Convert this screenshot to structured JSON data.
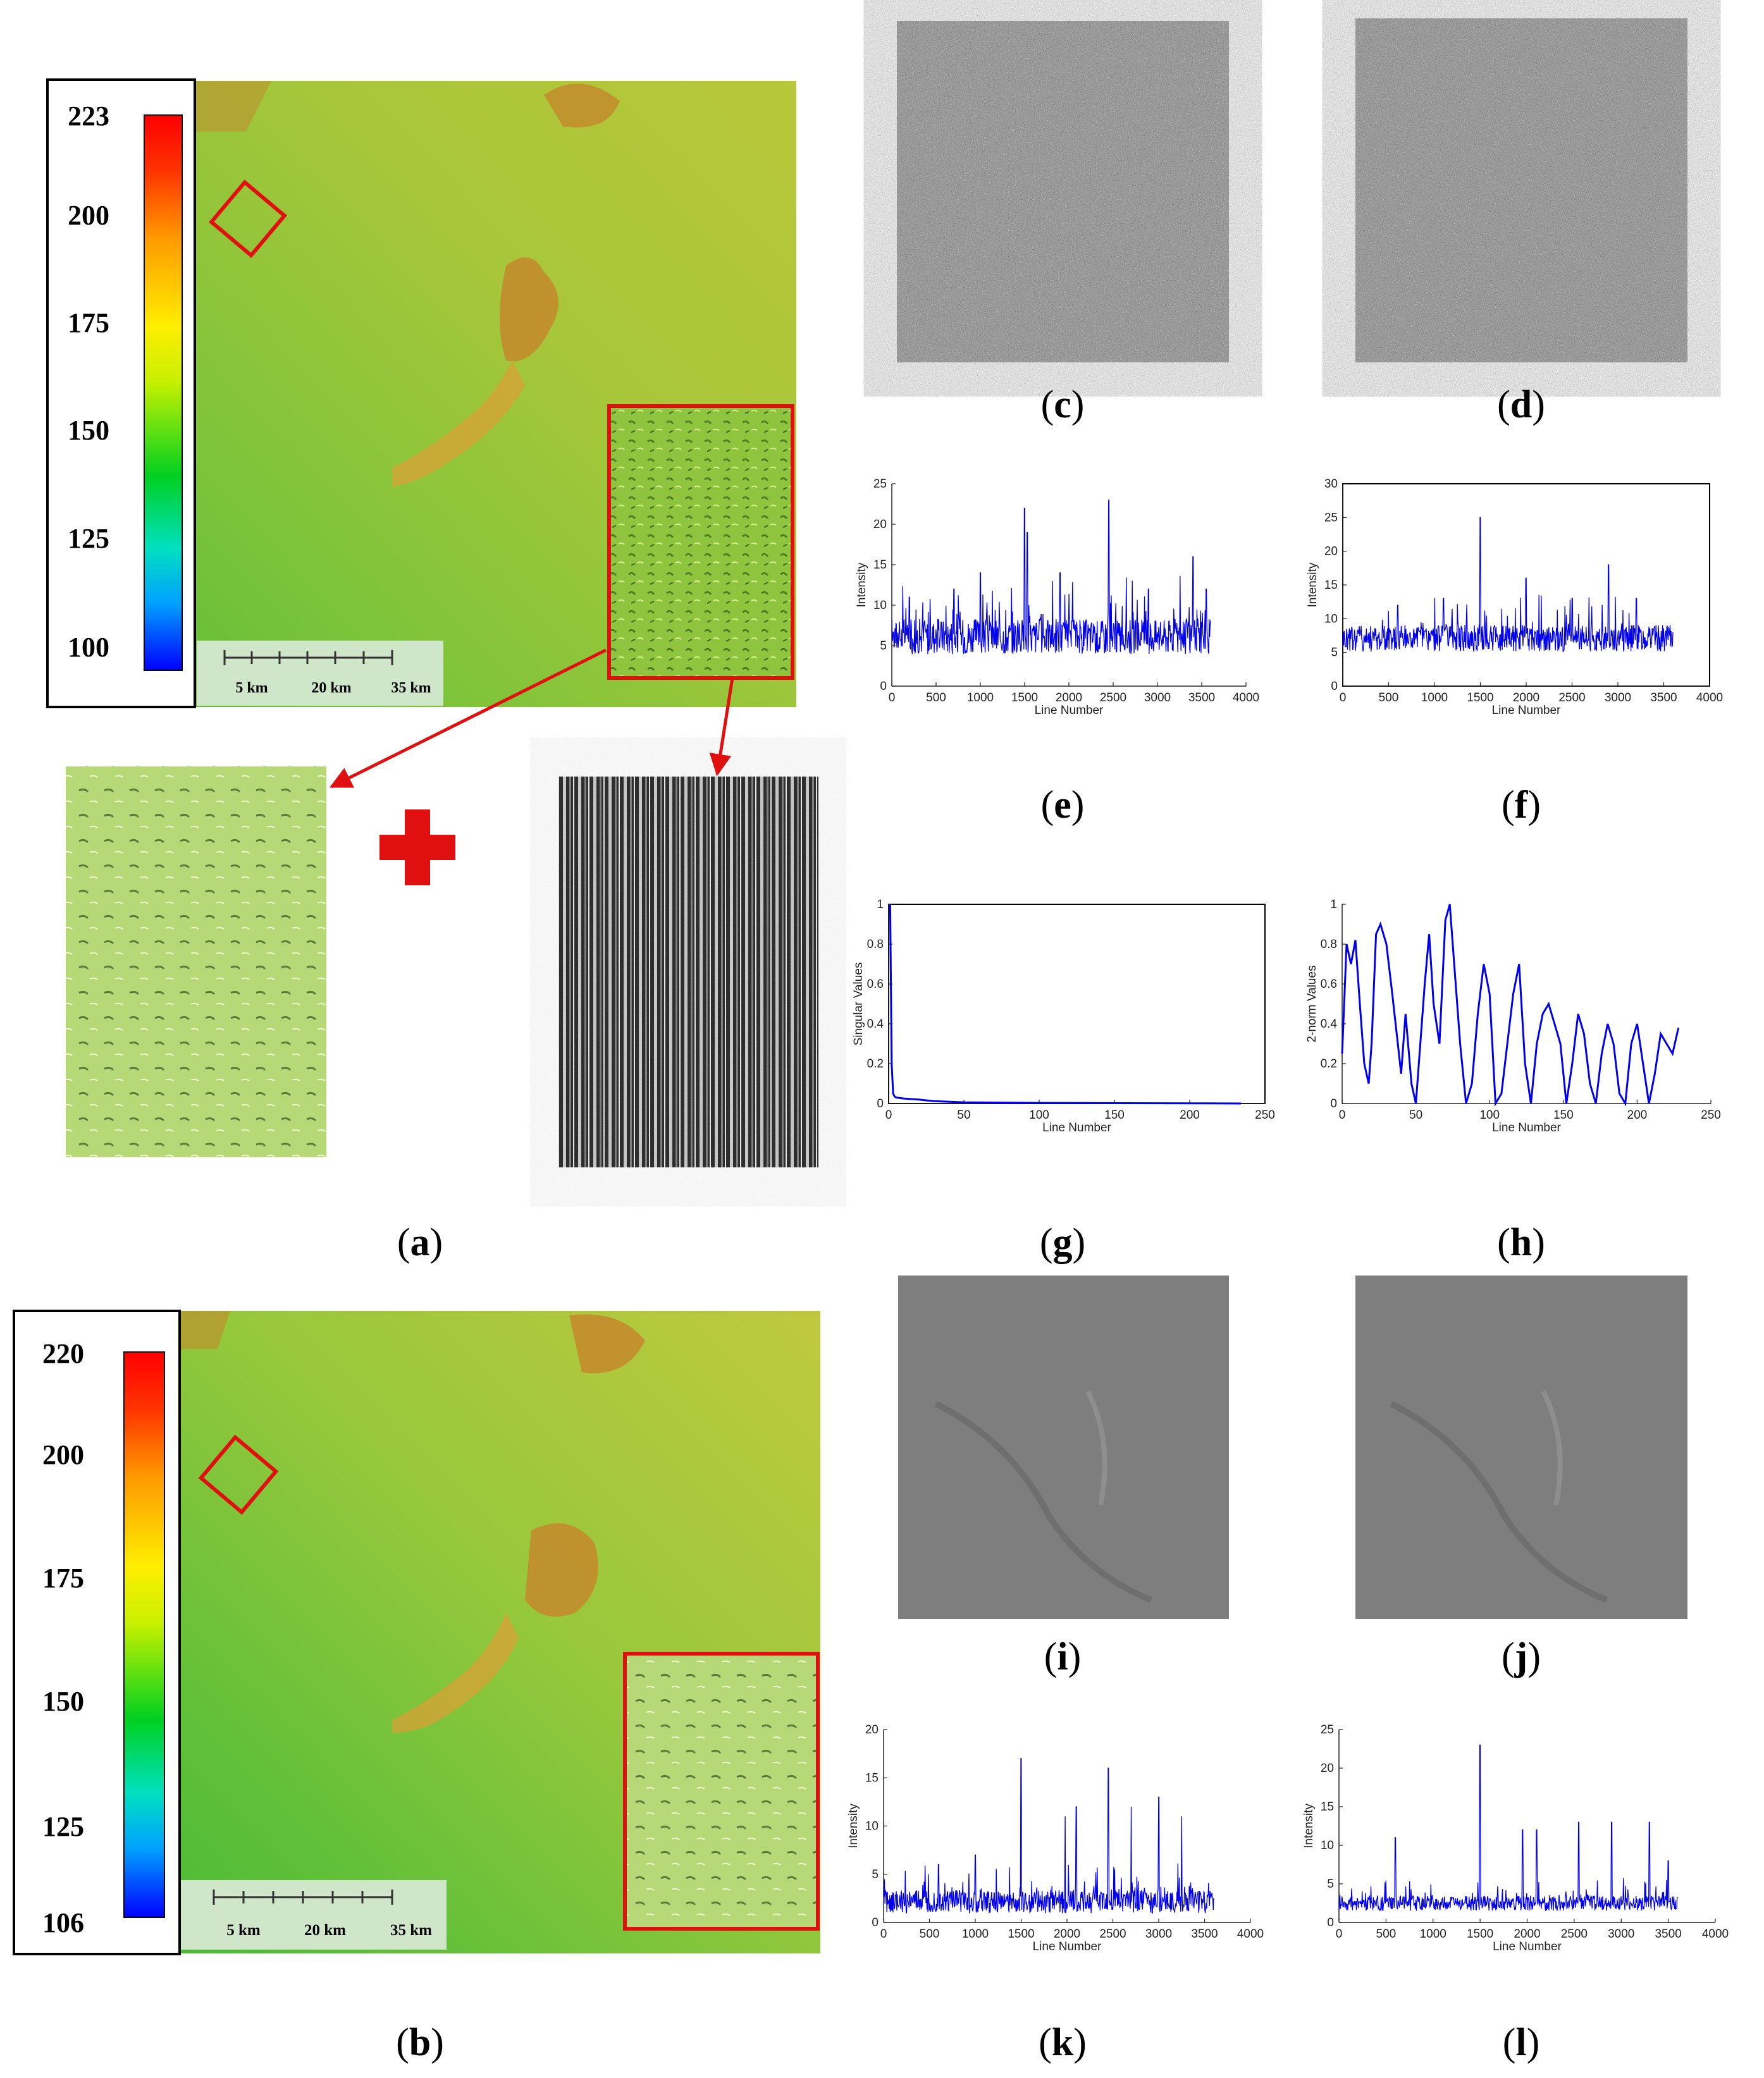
{
  "figure": {
    "panels": {
      "a": {
        "letter": "a",
        "colorbar_ticks": [
          "223",
          "200",
          "175",
          "150",
          "125",
          "100"
        ],
        "scale_labels": [
          "5 km",
          "20 km",
          "35 km"
        ]
      },
      "b": {
        "letter": "b",
        "colorbar_ticks": [
          "220",
          "200",
          "175",
          "150",
          "125",
          "106"
        ],
        "scale_labels": [
          "5 km",
          "20 km",
          "35 km"
        ]
      },
      "c": {
        "letter": "c"
      },
      "d": {
        "letter": "d"
      },
      "e": {
        "letter": "e"
      },
      "f": {
        "letter": "f"
      },
      "g": {
        "letter": "g"
      },
      "h": {
        "letter": "h"
      },
      "i": {
        "letter": "i"
      },
      "j": {
        "letter": "j"
      },
      "k": {
        "letter": "k"
      },
      "l": {
        "letter": "l"
      }
    },
    "colors": {
      "line": "#0000ee",
      "frame": "#e01010",
      "elev_low": "#5cbf2a",
      "elev_high": "#c48a2a"
    }
  },
  "chart_data": [
    {
      "id": "e",
      "type": "line",
      "xlabel": "Line Number",
      "ylabel": "Intensity",
      "xlim": [
        0,
        4000
      ],
      "ylim": [
        0,
        25
      ],
      "xticks": [
        "0",
        "500",
        "1000",
        "1500",
        "2000",
        "2500",
        "3000",
        "3500",
        "4000"
      ],
      "yticks": [
        "0",
        "5",
        "10",
        "15",
        "20",
        "25"
      ],
      "x_range": [
        0,
        3600
      ],
      "baseline": 5.5,
      "noise": 2.2,
      "spikes": [
        [
          200,
          11
        ],
        [
          700,
          12
        ],
        [
          1000,
          14
        ],
        [
          1500,
          22
        ],
        [
          1530,
          19
        ],
        [
          1900,
          14
        ],
        [
          2450,
          23
        ],
        [
          2900,
          12
        ],
        [
          3400,
          16
        ],
        [
          3550,
          12
        ]
      ]
    },
    {
      "id": "f",
      "type": "line",
      "xlabel": "Line Number",
      "ylabel": "Intensity",
      "xlim": [
        0,
        4000
      ],
      "ylim": [
        0,
        30
      ],
      "xticks": [
        "0",
        "500",
        "1000",
        "1500",
        "2000",
        "2500",
        "3000",
        "3500",
        "4000"
      ],
      "yticks": [
        "0",
        "5",
        "10",
        "15",
        "20",
        "25",
        "30"
      ],
      "x_range": [
        0,
        3600
      ],
      "baseline": 6.5,
      "noise": 2.0,
      "spikes": [
        [
          600,
          12
        ],
        [
          1100,
          13
        ],
        [
          1500,
          25
        ],
        [
          2000,
          16
        ],
        [
          2500,
          13
        ],
        [
          2900,
          18
        ],
        [
          3200,
          13
        ]
      ]
    },
    {
      "id": "g",
      "type": "line",
      "xlabel": "Line Number",
      "ylabel": "Singular Values",
      "xlim": [
        0,
        250
      ],
      "ylim": [
        0,
        1
      ],
      "xticks": [
        "0",
        "50",
        "100",
        "150",
        "200",
        "250"
      ],
      "yticks": [
        "0",
        "0.2",
        "0.4",
        "0.6",
        "0.8",
        "1"
      ],
      "x": [
        1,
        2,
        3,
        4,
        5,
        10,
        20,
        30,
        50,
        100,
        150,
        200,
        234
      ],
      "y": [
        1.0,
        0.2,
        0.05,
        0.035,
        0.03,
        0.025,
        0.02,
        0.012,
        0.006,
        0.003,
        0.002,
        0.001,
        0.0
      ]
    },
    {
      "id": "h",
      "type": "line",
      "xlabel": "Line Number",
      "ylabel": "2-norm Values",
      "xlim": [
        0,
        250
      ],
      "ylim": [
        0,
        1
      ],
      "xticks": [
        "0",
        "50",
        "100",
        "150",
        "200",
        "250"
      ],
      "yticks": [
        "0",
        "0.2",
        "0.4",
        "0.6",
        "0.8",
        "1"
      ],
      "x": [
        0,
        3,
        6,
        9,
        12,
        15,
        18,
        20,
        23,
        26,
        30,
        34,
        37,
        40,
        43,
        47,
        50,
        53,
        56,
        59,
        62,
        66,
        70,
        73,
        76,
        80,
        84,
        88,
        92,
        96,
        100,
        104,
        108,
        112,
        116,
        120,
        124,
        128,
        132,
        136,
        140,
        144,
        148,
        152,
        156,
        160,
        164,
        168,
        172,
        176,
        180,
        184,
        188,
        192,
        196,
        200,
        204,
        208,
        212,
        216,
        220,
        224,
        228
      ],
      "y": [
        0.25,
        0.8,
        0.7,
        0.82,
        0.5,
        0.2,
        0.1,
        0.3,
        0.85,
        0.9,
        0.8,
        0.55,
        0.35,
        0.15,
        0.45,
        0.1,
        0.0,
        0.3,
        0.6,
        0.85,
        0.5,
        0.3,
        0.92,
        1.0,
        0.7,
        0.3,
        0.0,
        0.1,
        0.45,
        0.7,
        0.55,
        0.0,
        0.05,
        0.3,
        0.55,
        0.7,
        0.2,
        0.0,
        0.3,
        0.45,
        0.5,
        0.4,
        0.3,
        0.0,
        0.2,
        0.45,
        0.35,
        0.1,
        0.0,
        0.25,
        0.4,
        0.3,
        0.05,
        0.0,
        0.3,
        0.4,
        0.2,
        0.0,
        0.15,
        0.35,
        0.3,
        0.25,
        0.38
      ]
    },
    {
      "id": "k",
      "type": "line",
      "xlabel": "Line Number",
      "ylabel": "Intensity",
      "xlim": [
        0,
        4000
      ],
      "ylim": [
        0,
        20
      ],
      "xticks": [
        "0",
        "500",
        "1000",
        "1500",
        "2000",
        "2500",
        "3000",
        "3500",
        "4000"
      ],
      "yticks": [
        "0",
        "5",
        "10",
        "15",
        "20"
      ],
      "x_range": [
        0,
        3600
      ],
      "baseline": 1.8,
      "noise": 1.2,
      "spikes": [
        [
          600,
          6
        ],
        [
          1000,
          7
        ],
        [
          1500,
          17
        ],
        [
          1980,
          11
        ],
        [
          2100,
          12
        ],
        [
          2450,
          16
        ],
        [
          2700,
          12
        ],
        [
          3000,
          13
        ],
        [
          3250,
          11
        ]
      ]
    },
    {
      "id": "l",
      "type": "line",
      "xlabel": "Line Number",
      "ylabel": "Intensity",
      "xlim": [
        0,
        4000
      ],
      "ylim": [
        0,
        25
      ],
      "xticks": [
        "0",
        "500",
        "1000",
        "1500",
        "2000",
        "2500",
        "3000",
        "3500",
        "4000"
      ],
      "yticks": [
        "0",
        "5",
        "10",
        "15",
        "20",
        "25"
      ],
      "x_range": [
        0,
        3600
      ],
      "baseline": 2.2,
      "noise": 1.0,
      "spikes": [
        [
          600,
          11
        ],
        [
          1500,
          23
        ],
        [
          1950,
          12
        ],
        [
          2100,
          12
        ],
        [
          2550,
          13
        ],
        [
          2900,
          13
        ],
        [
          3300,
          13
        ],
        [
          3500,
          8
        ]
      ]
    }
  ]
}
